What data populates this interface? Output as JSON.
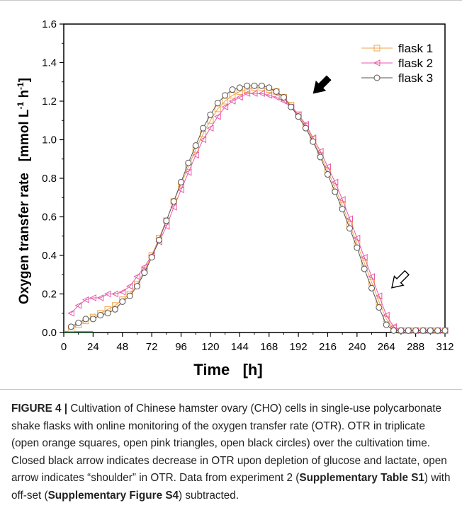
{
  "chart_data": {
    "type": "scatter",
    "xlabel": "Time   [h]",
    "ylabel_main": "Oxygen transfer rate   [mmol L",
    "ylabel_sup1": "-1",
    "ylabel_mid": " h",
    "ylabel_sup2": "-1",
    "ylabel_end": "]",
    "xlim": [
      0,
      312
    ],
    "ylim": [
      0,
      1.6
    ],
    "xticks": [
      "0",
      "24",
      "48",
      "72",
      "96",
      "120",
      "144",
      "168",
      "192",
      "216",
      "240",
      "264",
      "288",
      "312"
    ],
    "yticks": [
      "0.0",
      "0.2",
      "0.4",
      "0.6",
      "0.8",
      "1.0",
      "1.2",
      "1.4",
      "1.6"
    ],
    "legend_position": "top-right",
    "series": [
      {
        "name": "flask 1",
        "marker": "square",
        "color": "#f0a44a",
        "x": [
          6,
          12,
          18,
          24,
          30,
          36,
          42,
          48,
          54,
          60,
          66,
          72,
          78,
          84,
          90,
          96,
          102,
          108,
          114,
          120,
          126,
          132,
          138,
          144,
          150,
          156,
          162,
          168,
          174,
          180,
          186,
          192,
          198,
          204,
          210,
          216,
          222,
          228,
          234,
          240,
          246,
          252,
          258,
          264,
          270,
          276,
          282,
          288,
          294,
          300,
          306,
          312
        ],
        "y": [
          0.02,
          0.04,
          0.06,
          0.08,
          0.1,
          0.12,
          0.14,
          0.17,
          0.2,
          0.25,
          0.32,
          0.4,
          0.49,
          0.58,
          0.68,
          0.77,
          0.86,
          0.95,
          1.03,
          1.1,
          1.16,
          1.2,
          1.23,
          1.25,
          1.26,
          1.27,
          1.27,
          1.26,
          1.25,
          1.22,
          1.18,
          1.13,
          1.07,
          1.0,
          0.92,
          0.84,
          0.75,
          0.66,
          0.56,
          0.46,
          0.36,
          0.26,
          0.16,
          0.07,
          0.02,
          0.01,
          0.01,
          0.01,
          0.01,
          0.01,
          0.01,
          0.01
        ]
      },
      {
        "name": "flask 2",
        "marker": "triangle-left",
        "color": "#e85aa8",
        "x": [
          6,
          12,
          18,
          24,
          30,
          36,
          42,
          48,
          54,
          60,
          66,
          72,
          78,
          84,
          90,
          96,
          102,
          108,
          114,
          120,
          126,
          132,
          138,
          144,
          150,
          156,
          162,
          168,
          174,
          180,
          186,
          192,
          198,
          204,
          210,
          216,
          222,
          228,
          234,
          240,
          246,
          252,
          258,
          264,
          270,
          276,
          282,
          288,
          294,
          300,
          306,
          312
        ],
        "y": [
          0.1,
          0.14,
          0.17,
          0.18,
          0.18,
          0.2,
          0.2,
          0.21,
          0.24,
          0.29,
          0.34,
          0.4,
          0.47,
          0.55,
          0.65,
          0.74,
          0.83,
          0.92,
          1.0,
          1.06,
          1.12,
          1.17,
          1.2,
          1.22,
          1.24,
          1.24,
          1.24,
          1.23,
          1.22,
          1.2,
          1.17,
          1.13,
          1.08,
          1.01,
          0.94,
          0.86,
          0.78,
          0.69,
          0.59,
          0.49,
          0.39,
          0.29,
          0.19,
          0.09,
          0.03,
          0.01,
          0.01,
          0.01,
          0.01,
          0.01,
          0.01,
          0.01
        ]
      },
      {
        "name": "flask 3",
        "marker": "circle",
        "color": "#555555",
        "x": [
          6,
          12,
          18,
          24,
          30,
          36,
          42,
          48,
          54,
          60,
          66,
          72,
          78,
          84,
          90,
          96,
          102,
          108,
          114,
          120,
          126,
          132,
          138,
          144,
          150,
          156,
          162,
          168,
          174,
          180,
          186,
          192,
          198,
          204,
          210,
          216,
          222,
          228,
          234,
          240,
          246,
          252,
          258,
          264,
          270,
          276,
          282,
          288,
          294,
          300,
          306,
          312
        ],
        "y": [
          0.03,
          0.05,
          0.07,
          0.07,
          0.09,
          0.1,
          0.12,
          0.16,
          0.19,
          0.24,
          0.31,
          0.39,
          0.48,
          0.58,
          0.68,
          0.78,
          0.88,
          0.97,
          1.06,
          1.13,
          1.19,
          1.23,
          1.26,
          1.27,
          1.28,
          1.28,
          1.28,
          1.27,
          1.25,
          1.22,
          1.17,
          1.12,
          1.06,
          0.99,
          0.91,
          0.82,
          0.73,
          0.64,
          0.54,
          0.44,
          0.33,
          0.23,
          0.13,
          0.04,
          0.01,
          0.01,
          0.01,
          0.01,
          0.01,
          0.01,
          0.01,
          0.01
        ]
      }
    ],
    "annotations": [
      {
        "name": "closed-arrow",
        "style": "filled",
        "x": 201,
        "y": 1.22
      },
      {
        "name": "open-arrow",
        "style": "open",
        "x": 265,
        "y": 0.21
      }
    ]
  },
  "caption": {
    "label": "FIGURE 4 |",
    "text1": " Cultivation of Chinese hamster ovary (CHO) cells in single-use polycarbonate shake flasks with online monitoring of the oxygen transfer rate (OTR). OTR in triplicate (open orange squares, open pink triangles, open black circles) over the cultivation time. Closed black arrow indicates decrease in OTR upon depletion of glucose and lactate, open arrow indicates “shoulder” in OTR. Data from experiment 2 (",
    "ref1": "Supplementary Table S1",
    "text2": ") with off-set (",
    "ref2": "Supplementary Figure S4",
    "text3": ") subtracted."
  }
}
